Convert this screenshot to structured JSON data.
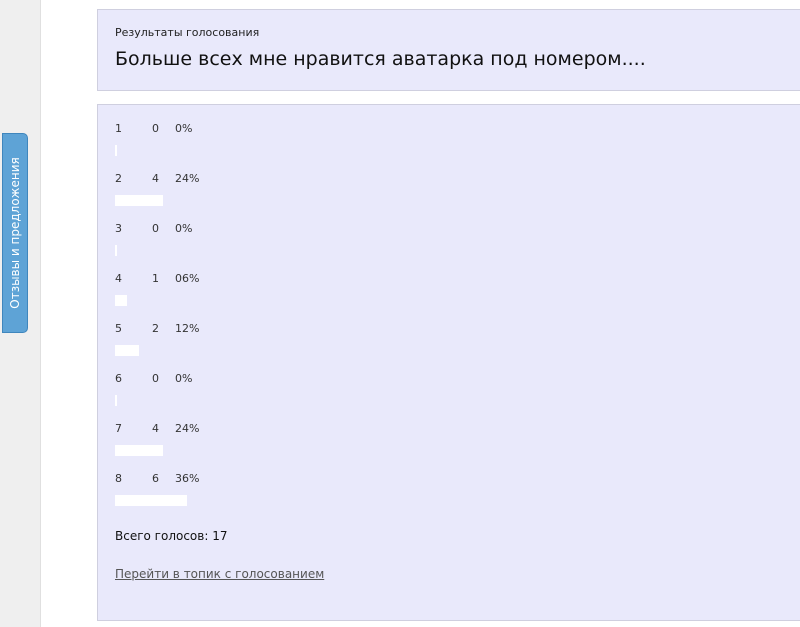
{
  "sidebar": {
    "feedback_tab": "Отзывы и предложения"
  },
  "poll": {
    "subtitle": "Результаты голосования",
    "title": "Больше всех мне нравится аватарка под номером....",
    "options": [
      {
        "number": "1",
        "votes": "0",
        "percent": "0%",
        "fill": 0
      },
      {
        "number": "2",
        "votes": "4",
        "percent": "24%",
        "fill": 24
      },
      {
        "number": "3",
        "votes": "0",
        "percent": "0%",
        "fill": 0
      },
      {
        "number": "4",
        "votes": "1",
        "percent": "06%",
        "fill": 6
      },
      {
        "number": "5",
        "votes": "2",
        "percent": "12%",
        "fill": 12
      },
      {
        "number": "6",
        "votes": "0",
        "percent": "0%",
        "fill": 0
      },
      {
        "number": "7",
        "votes": "4",
        "percent": "24%",
        "fill": 24
      },
      {
        "number": "8",
        "votes": "6",
        "percent": "36%",
        "fill": 36
      }
    ],
    "total": "Всего голосов: 17",
    "topic_link": "Перейти в топик с голосованием"
  }
}
